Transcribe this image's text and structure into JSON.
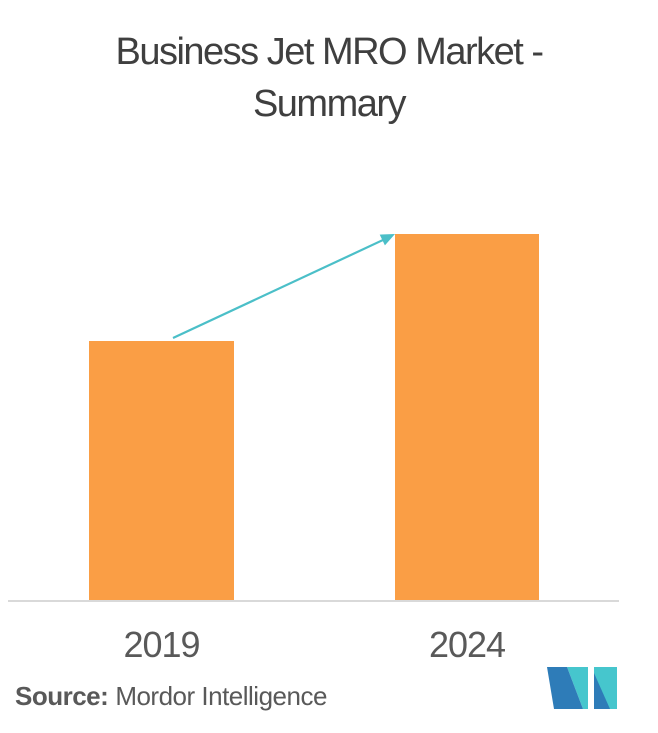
{
  "title": {
    "line1": "Business Jet MRO Market -",
    "line2": "Summary"
  },
  "source": {
    "label": "Source:",
    "text": "Mordor Intelligence"
  },
  "chart_data": {
    "type": "bar",
    "title": "Business Jet MRO Market - Summary",
    "categories": [
      "2019",
      "2024"
    ],
    "values": [
      71,
      100
    ],
    "value_basis": "relative bar height index, 2024 = 100 (no numeric y-axis shown)",
    "xlabel": "",
    "ylabel": "",
    "grid": false,
    "legend": false,
    "bar_color": "#FA9E45",
    "annotations": [
      "teal growth arrow from top of 2019 bar to top-left corner of 2024 bar"
    ]
  },
  "colors": {
    "bar_color": "#FA9E45",
    "arrow_color": "#4BBFC8",
    "axis_color": "#D9D9D9",
    "title_color": "#3F3F3F",
    "label_color": "#595959",
    "logo_blue": "#2E7CB8",
    "logo_teal": "#46C6CD"
  },
  "logo": {
    "name": "Mordor Intelligence"
  }
}
